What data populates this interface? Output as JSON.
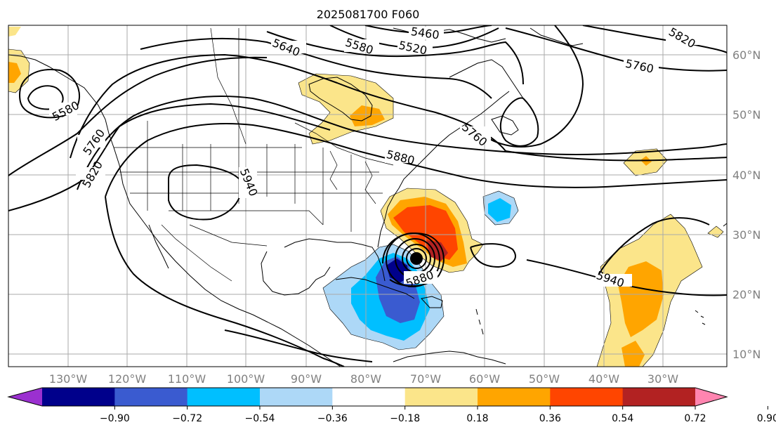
{
  "title": "2025081700 F060",
  "x_ticks": [
    "130°W",
    "120°W",
    "110°W",
    "100°W",
    "90°W",
    "80°W",
    "70°W",
    "60°W",
    "50°W",
    "40°W",
    "30°W"
  ],
  "y_ticks": [
    "60°N",
    "50°N",
    "40°N",
    "30°N",
    "20°N",
    "10°N"
  ],
  "contour_labels": [
    "5460",
    "5520",
    "5580",
    "5640",
    "5580",
    "5760",
    "5820",
    "5820",
    "5760",
    "5940",
    "5880",
    "5760",
    "5880",
    "5940"
  ],
  "colorbar": {
    "ticks": [
      "−0.90",
      "−0.72",
      "−0.54",
      "−0.36",
      "−0.18",
      "0.18",
      "0.36",
      "0.54",
      "0.72",
      "0.90"
    ],
    "colors": [
      "#9b30d0",
      "#00008b",
      "#3a5bd0",
      "#00bfff",
      "#add8f7",
      "#ffffff",
      "#fbe58a",
      "#ffa500",
      "#ff4500",
      "#b22222",
      "#ff85b0"
    ]
  },
  "colors": {
    "land_border": "#000000",
    "grid": "#aaaaaa",
    "contour": "#000000",
    "tick_text": "#808080"
  }
}
